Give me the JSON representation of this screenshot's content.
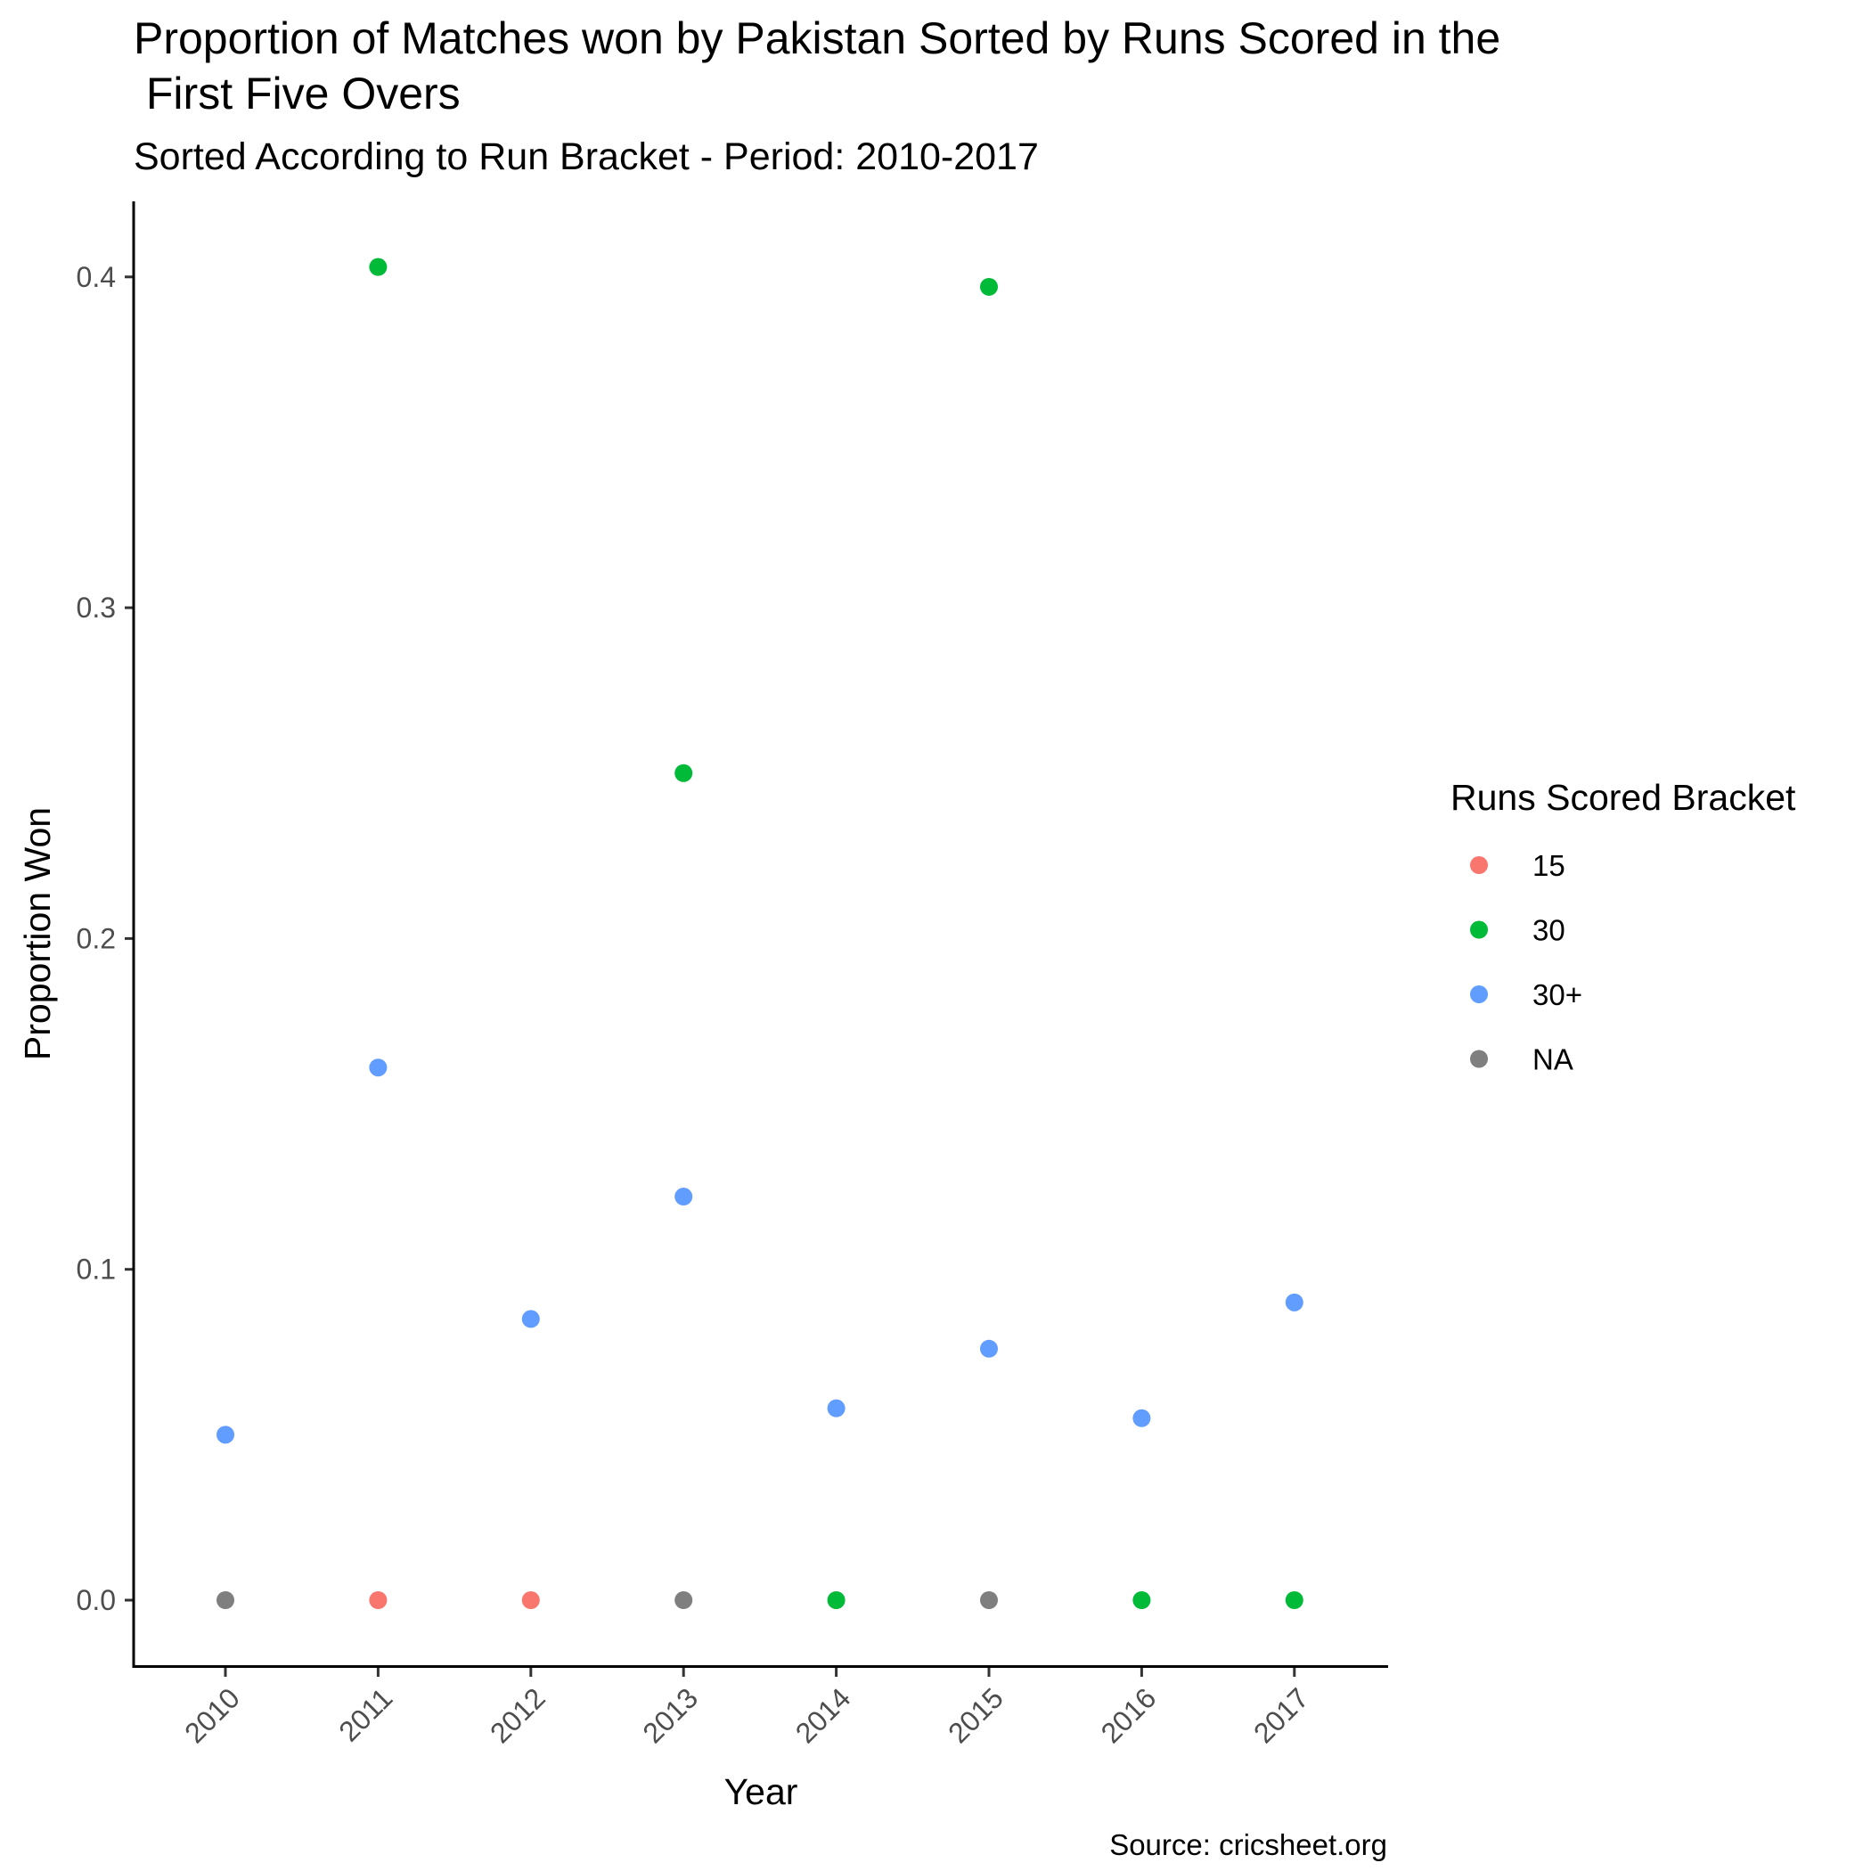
{
  "chart_data": {
    "type": "scatter",
    "title_lines": [
      "Proportion of Matches won by Pakistan Sorted by Runs Scored in the",
      " First Five Overs"
    ],
    "subtitle": "Sorted According to Run Bracket - Period: 2010-2017",
    "xlabel": "Year",
    "ylabel": "Proportion Won",
    "caption": "Source: cricsheet.org",
    "x": [
      "2010",
      "2011",
      "2012",
      "2013",
      "2014",
      "2015",
      "2016",
      "2017"
    ],
    "y_ticks": [
      0.0,
      0.1,
      0.2,
      0.3,
      0.4
    ],
    "y_tick_labels": [
      "0.0",
      "0.1",
      "0.2",
      "0.3",
      "0.4"
    ],
    "ylim": [
      -0.02,
      0.424
    ],
    "grid": false,
    "legend": {
      "title": "Runs Scored Bracket",
      "position": "right",
      "entries": [
        "15",
        "30",
        "30+",
        "NA"
      ]
    },
    "colors": {
      "15": "#F8766D",
      "30": "#00BA38",
      "30+": "#619CFF",
      "NA": "#7F7F7F"
    },
    "points": [
      {
        "x": "2010",
        "y": 0.05,
        "bracket": "30+"
      },
      {
        "x": "2010",
        "y": 0.0,
        "bracket": "NA"
      },
      {
        "x": "2011",
        "y": 0.403,
        "bracket": "30"
      },
      {
        "x": "2011",
        "y": 0.161,
        "bracket": "30+"
      },
      {
        "x": "2011",
        "y": 0.0,
        "bracket": "15"
      },
      {
        "x": "2012",
        "y": 0.085,
        "bracket": "30+"
      },
      {
        "x": "2012",
        "y": 0.0,
        "bracket": "15"
      },
      {
        "x": "2013",
        "y": 0.25,
        "bracket": "30"
      },
      {
        "x": "2013",
        "y": 0.122,
        "bracket": "30+"
      },
      {
        "x": "2013",
        "y": 0.0,
        "bracket": "NA"
      },
      {
        "x": "2014",
        "y": 0.058,
        "bracket": "30+"
      },
      {
        "x": "2014",
        "y": 0.0,
        "bracket": "30"
      },
      {
        "x": "2015",
        "y": 0.397,
        "bracket": "30"
      },
      {
        "x": "2015",
        "y": 0.076,
        "bracket": "30+"
      },
      {
        "x": "2015",
        "y": 0.0,
        "bracket": "NA"
      },
      {
        "x": "2016",
        "y": 0.055,
        "bracket": "30+"
      },
      {
        "x": "2016",
        "y": 0.0,
        "bracket": "30"
      },
      {
        "x": "2017",
        "y": 0.09,
        "bracket": "30+"
      },
      {
        "x": "2017",
        "y": 0.0,
        "bracket": "30"
      }
    ]
  }
}
